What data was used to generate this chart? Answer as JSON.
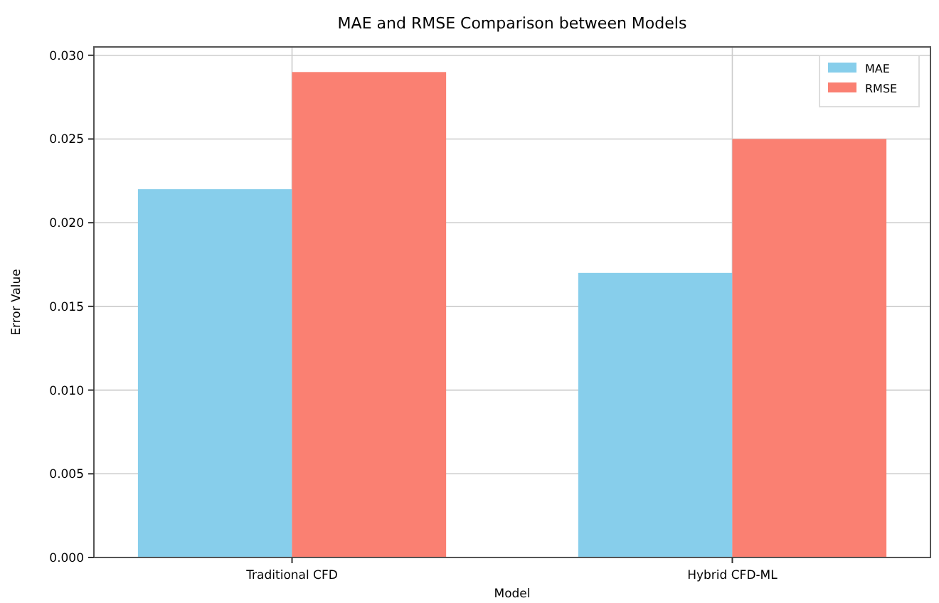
{
  "chart_data": {
    "type": "bar",
    "title": "MAE and RMSE Comparison between Models",
    "xlabel": "Model",
    "ylabel": "Error Value",
    "categories": [
      "Traditional CFD",
      "Hybrid CFD-ML"
    ],
    "series": [
      {
        "name": "MAE",
        "color": "#87ceeb",
        "values": [
          0.022,
          0.017
        ]
      },
      {
        "name": "RMSE",
        "color": "#fa8072",
        "values": [
          0.029,
          0.025
        ]
      }
    ],
    "ylim": [
      0,
      0.0305
    ],
    "yticks": [
      {
        "value": 0,
        "label": "0.000"
      },
      {
        "value": 0.005,
        "label": "0.005"
      },
      {
        "value": 0.01,
        "label": "0.010"
      },
      {
        "value": 0.015,
        "label": "0.015"
      },
      {
        "value": 0.02,
        "label": "0.020"
      },
      {
        "value": 0.025,
        "label": "0.025"
      },
      {
        "value": 0.03,
        "label": "0.030"
      }
    ],
    "grid": true,
    "legend": "top right"
  }
}
